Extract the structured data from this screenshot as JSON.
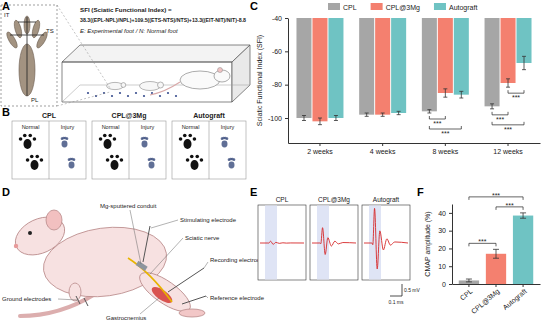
{
  "figure": {
    "panel_labels": [
      "A",
      "B",
      "C",
      "D",
      "E",
      "F"
    ],
    "panel_a": {
      "paw_labels": [
        "IT",
        "TS",
        "PL"
      ],
      "formula": [
        "SFI (Sciatic Functional Index) =",
        "38.3((EPL-NPL)/NPL)+109.5((ETS-NTS)/NTS)+13.3((EIT-NIT)/NIT)-8.8"
      ],
      "note": "E: Experimental foot / N: Normal foot"
    },
    "panel_b": {
      "groups": [
        "CPL",
        "CPL@3Mg",
        "Autograft"
      ],
      "sides": [
        "Normal",
        "Injury"
      ]
    },
    "panel_d": {
      "labels": [
        "Mg-sputtered conduit",
        "Stimulating electrode",
        "Sciatic nerve",
        "Gastrocnemius",
        "Recording electrode",
        "Ground electrodes",
        "Reference electrode"
      ]
    },
    "panel_e": {
      "groups": [
        "CPL",
        "CPL@3Mg",
        "Autograft"
      ],
      "scale_y": "0.5 mV",
      "scale_x": "0.1 ms"
    }
  },
  "chart_data": [
    {
      "type": "bar",
      "y_label": "Sciatic Functional Index (SFI)",
      "categories": [
        "2 weeks",
        "4 weeks",
        "8 weeks",
        "12 weeks"
      ],
      "series": [
        {
          "name": "CPL",
          "color": "#a6a6a6",
          "values": [
            -100,
            -98,
            -96,
            -93
          ],
          "errors": [
            1.5,
            1,
            1,
            1.5
          ]
        },
        {
          "name": "CPL@3Mg",
          "color": "#f4806f",
          "values": [
            -102,
            -98,
            -85,
            -79
          ],
          "errors": [
            2,
            1,
            2.5,
            2.5
          ]
        },
        {
          "name": "Autograft",
          "color": "#6fc3c3",
          "values": [
            -100,
            -97,
            -86,
            -67
          ],
          "errors": [
            1.5,
            1,
            2,
            4
          ]
        }
      ],
      "ylim": [
        -115,
        -40
      ],
      "yticks": [
        -100,
        -80,
        -60,
        -40
      ],
      "legend": "top",
      "annotations": [
        {
          "text": "***",
          "category": "8 weeks",
          "between": [
            "CPL",
            "CPL@3Mg"
          ]
        },
        {
          "text": "***",
          "category": "8 weeks",
          "between": [
            "CPL",
            "Autograft"
          ]
        },
        {
          "text": "***",
          "category": "12 weeks",
          "between": [
            "CPL@3Mg",
            "Autograft"
          ]
        },
        {
          "text": "***",
          "category": "12 weeks",
          "between": [
            "CPL",
            "CPL@3Mg"
          ]
        },
        {
          "text": "***",
          "category": "12 weeks",
          "between": [
            "CPL",
            "Autograft"
          ]
        }
      ]
    },
    {
      "type": "bar",
      "y_label": "CMAP amplitude (%)",
      "categories": [
        "CPL",
        "CPL@3Mg",
        "Autograft"
      ],
      "values": [
        2,
        17,
        38.5
      ],
      "errors": [
        0.8,
        2.5,
        1.5
      ],
      "colors": [
        "#a6a6a6",
        "#f4806f",
        "#6fc3c3"
      ],
      "ylim": [
        0,
        45
      ],
      "yticks": [
        0,
        10,
        20,
        30,
        40
      ],
      "annotations": [
        {
          "text": "***",
          "between": [
            "CPL",
            "CPL@3Mg"
          ]
        },
        {
          "text": "***",
          "between": [
            "CPL@3Mg",
            "Autograft"
          ]
        },
        {
          "text": "***",
          "between": [
            "CPL",
            "Autograft"
          ]
        }
      ]
    }
  ]
}
